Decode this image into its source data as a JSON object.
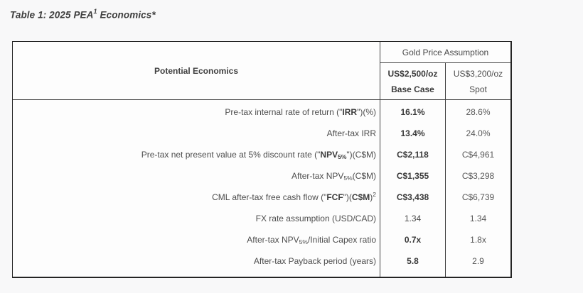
{
  "title": {
    "prefix": "Table 1: 2025 PEA",
    "superscript": "1",
    "suffix": " Economics*"
  },
  "table": {
    "corner_header": "Potential Economics",
    "group_header": "Gold Price Assumption",
    "columns": [
      {
        "line1": "US$2,500/oz",
        "line2": "Base Case",
        "bold": true
      },
      {
        "line1": "US$3,200/oz",
        "line2": "Spot",
        "bold": false
      }
    ],
    "rows": [
      {
        "label": [
          {
            "text": "Pre-tax internal rate of return (\""
          },
          {
            "text": "IRR",
            "bold": true
          },
          {
            "text": "\")(%)"
          }
        ],
        "base": "16.1%",
        "base_bold": true,
        "spot": "28.6%"
      },
      {
        "label": [
          {
            "text": "After-tax IRR"
          }
        ],
        "base": "13.4%",
        "base_bold": true,
        "spot": "24.0%"
      },
      {
        "label": [
          {
            "text": "Pre-tax net present value at 5% discount rate (\""
          },
          {
            "text": "NPV",
            "bold": true
          },
          {
            "text": "5%",
            "bold": true,
            "sub": true
          },
          {
            "text": "\")(C$M)"
          }
        ],
        "base": "C$2,118",
        "base_bold": true,
        "spot": "C$4,961"
      },
      {
        "label": [
          {
            "text": "After-tax NPV"
          },
          {
            "text": "5%",
            "sub": true
          },
          {
            "text": " (C$M)"
          }
        ],
        "base": "C$1,355",
        "base_bold": true,
        "spot": "C$3,298"
      },
      {
        "label": [
          {
            "text": "CML after-tax free cash flow (\""
          },
          {
            "text": "FCF",
            "bold": true
          },
          {
            "text": "\")("
          },
          {
            "text": "C$M",
            "bold": true
          },
          {
            "text": ")"
          },
          {
            "text": "2",
            "sup": true
          }
        ],
        "base": "C$3,438",
        "base_bold": true,
        "spot": "C$6,739"
      },
      {
        "label": [
          {
            "text": "FX rate assumption (USD/CAD)"
          }
        ],
        "base": "1.34",
        "base_bold": false,
        "spot": "1.34"
      },
      {
        "label": [
          {
            "text": "After-tax NPV"
          },
          {
            "text": "5%",
            "sub": true
          },
          {
            "text": "/Initial Capex ratio"
          }
        ],
        "base": "0.7x",
        "base_bold": true,
        "spot": "1.8x"
      },
      {
        "label": [
          {
            "text": "After-tax Payback period (years)"
          }
        ],
        "base": "5.8",
        "base_bold": true,
        "spot": "2.9"
      }
    ]
  },
  "colors": {
    "page_background": "#f8f8f9",
    "table_background": "#fdfdfd",
    "border": "#242424",
    "inner_border": "#424242",
    "text": "#4d4d4d",
    "bold_text": "#393939"
  }
}
